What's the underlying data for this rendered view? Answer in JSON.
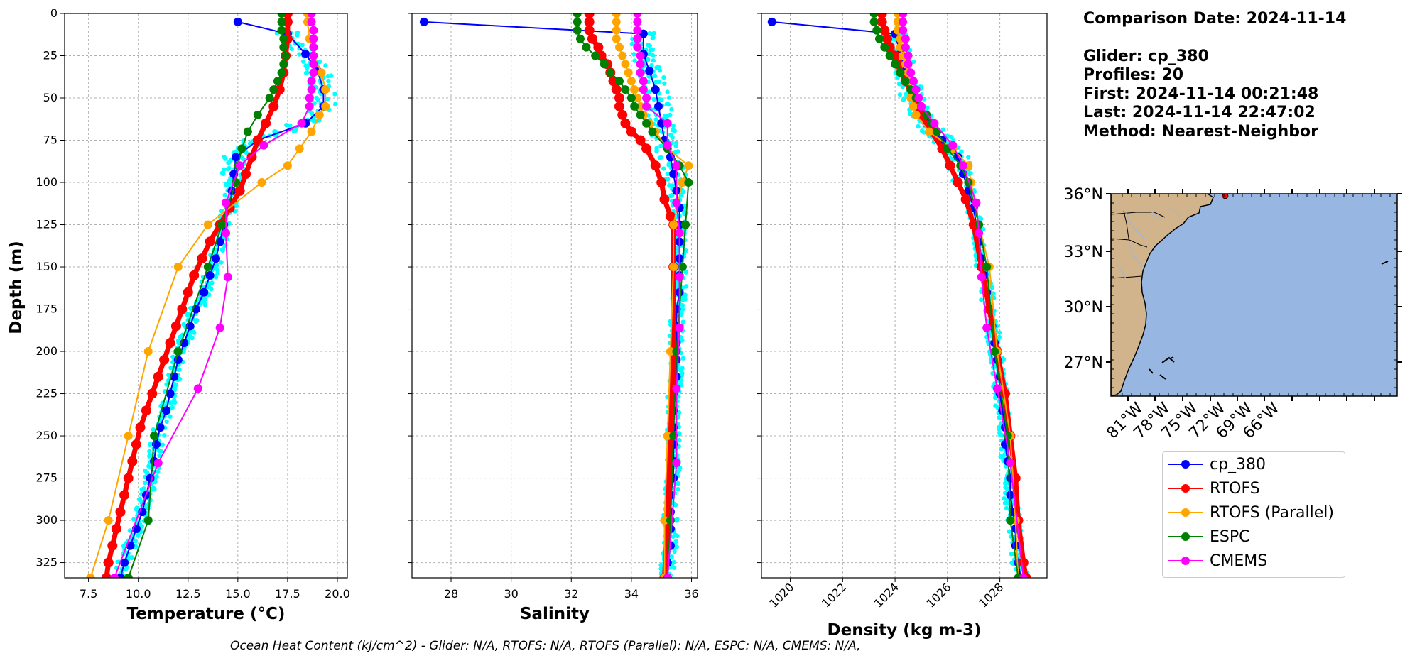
{
  "info": {
    "comparison_date": "Comparison Date: 2024-11-14",
    "glider": "Glider: cp_380",
    "profiles": "Profiles: 20",
    "first": "First: 2024-11-14 00:21:48",
    "last": "Last: 2024-11-14 22:47:02",
    "method": "Method: Nearest-Neighbor"
  },
  "footnote": "Ocean Heat Content (kJ/cm^2) - Glider: N/A,  RTOFS: N/A,  RTOFS (Parallel): N/A,  ESPC: N/A,  CMEMS: N/A,",
  "colors": {
    "cp_380": "#0000ff",
    "RTOFS": "#ff0000",
    "RTOFS (Parallel)": "#ffa500",
    "ESPC": "#008000",
    "CMEMS": "#ff00ff",
    "raw_profiles": "#00ffff",
    "ocean": "#97b6e1",
    "land": "#d2b48c"
  },
  "legend": [
    "cp_380",
    "RTOFS",
    "RTOFS (Parallel)",
    "ESPC",
    "CMEMS"
  ],
  "chart_data": [
    {
      "type": "line",
      "panel": "temperature",
      "xlabel": "Temperature (°C)",
      "ylabel": "Depth (m)",
      "xlim": [
        6.3,
        20.5
      ],
      "ylim": [
        334,
        0
      ],
      "xticks": [
        7.5,
        10.0,
        12.5,
        15.0,
        17.5,
        20.0
      ],
      "yticks": [
        0,
        25,
        50,
        75,
        100,
        125,
        150,
        175,
        200,
        225,
        250,
        275,
        300,
        325
      ],
      "grid": true,
      "series": [
        {
          "name": "cp_380",
          "depth": [
            5,
            12,
            24,
            34,
            45,
            55,
            65,
            75,
            85,
            95,
            105,
            115,
            125,
            135,
            145,
            155,
            165,
            175,
            185,
            195,
            205,
            215,
            225,
            235,
            245,
            255,
            265,
            275,
            285,
            295,
            305,
            315,
            325,
            334
          ],
          "values": [
            15.0,
            17.5,
            18.4,
            19.0,
            19.3,
            19.3,
            18.4,
            16.0,
            14.9,
            14.8,
            14.7,
            14.6,
            14.3,
            14.1,
            13.9,
            13.6,
            13.3,
            12.9,
            12.6,
            12.3,
            12.0,
            11.8,
            11.6,
            11.4,
            11.1,
            10.9,
            10.8,
            10.6,
            10.4,
            10.2,
            9.9,
            9.6,
            9.3,
            9.1
          ]
        },
        {
          "name": "RTOFS",
          "depth": [
            0,
            5,
            15,
            25,
            35,
            45,
            55,
            65,
            75,
            85,
            95,
            105,
            115,
            125,
            135,
            145,
            155,
            165,
            175,
            185,
            195,
            205,
            215,
            225,
            235,
            245,
            255,
            265,
            275,
            285,
            295,
            305,
            315,
            325,
            334
          ],
          "values": [
            17.5,
            17.5,
            17.5,
            17.4,
            17.3,
            17.1,
            16.8,
            16.4,
            16.0,
            15.7,
            15.4,
            15.1,
            14.6,
            14.1,
            13.6,
            13.2,
            12.8,
            12.5,
            12.2,
            11.9,
            11.6,
            11.3,
            11.0,
            10.7,
            10.4,
            10.1,
            9.9,
            9.7,
            9.5,
            9.3,
            9.1,
            8.9,
            8.7,
            8.5,
            8.4
          ]
        },
        {
          "name": "RTOFS (Parallel)",
          "depth": [
            0,
            5,
            15,
            25,
            35,
            45,
            55,
            60,
            70,
            80,
            90,
            100,
            125,
            150,
            200,
            250,
            300,
            334
          ],
          "values": [
            18.5,
            18.5,
            18.6,
            18.8,
            19.2,
            19.4,
            19.4,
            19.1,
            18.7,
            18.1,
            17.5,
            16.2,
            13.5,
            12.0,
            10.5,
            9.5,
            8.5,
            7.6
          ]
        },
        {
          "name": "ESPC",
          "depth": [
            0,
            5,
            10,
            15,
            20,
            25,
            30,
            35,
            40,
            45,
            50,
            60,
            70,
            80,
            90,
            100,
            125,
            150,
            200,
            250,
            300,
            334
          ],
          "values": [
            17.2,
            17.2,
            17.2,
            17.3,
            17.3,
            17.4,
            17.3,
            17.2,
            17.0,
            16.8,
            16.6,
            16.0,
            15.5,
            15.2,
            15.0,
            14.9,
            14.2,
            13.5,
            12.0,
            10.8,
            10.5,
            9.5
          ]
        },
        {
          "name": "CMEMS",
          "depth": [
            0,
            5,
            10,
            15,
            20,
            25,
            30,
            35,
            40,
            45,
            50,
            55,
            65,
            78,
            90,
            112,
            130,
            156,
            186,
            222,
            266,
            334
          ],
          "values": [
            18.7,
            18.7,
            18.8,
            18.8,
            18.8,
            18.8,
            18.8,
            18.8,
            18.7,
            18.7,
            18.6,
            18.6,
            18.2,
            16.3,
            15.1,
            14.4,
            14.4,
            14.5,
            14.1,
            13.0,
            11.0,
            8.8
          ]
        }
      ]
    },
    {
      "type": "line",
      "panel": "salinity",
      "xlabel": "Salinity",
      "xlim": [
        26.7,
        36.2
      ],
      "ylim": [
        334,
        0
      ],
      "xticks": [
        28,
        30,
        32,
        34,
        36
      ],
      "yticks": [
        0,
        25,
        50,
        75,
        100,
        125,
        150,
        175,
        200,
        225,
        250,
        275,
        300,
        325
      ],
      "grid": true,
      "series": [
        {
          "name": "cp_380",
          "depth": [
            5,
            12,
            24,
            34,
            45,
            55,
            65,
            75,
            85,
            95,
            105,
            115,
            125,
            135,
            145,
            155,
            165,
            175,
            185,
            195,
            205,
            215,
            225,
            235,
            245,
            255,
            265,
            275,
            285,
            295,
            305,
            315,
            325,
            334
          ],
          "values": [
            27.1,
            34.4,
            34.4,
            34.6,
            34.8,
            34.9,
            35.0,
            35.1,
            35.3,
            35.4,
            35.5,
            35.6,
            35.6,
            35.6,
            35.6,
            35.6,
            35.6,
            35.5,
            35.5,
            35.5,
            35.5,
            35.5,
            35.4,
            35.4,
            35.4,
            35.4,
            35.4,
            35.4,
            35.3,
            35.3,
            35.3,
            35.3,
            35.2,
            35.2
          ]
        },
        {
          "name": "RTOFS",
          "depth": [
            0,
            5,
            10,
            15,
            20,
            25,
            30,
            35,
            40,
            45,
            50,
            55,
            60,
            65,
            70,
            75,
            80,
            90,
            100,
            110,
            120,
            125,
            150,
            200,
            250,
            300,
            334
          ],
          "values": [
            32.6,
            32.6,
            32.6,
            32.7,
            32.9,
            33.0,
            33.2,
            33.3,
            33.4,
            33.5,
            33.6,
            33.6,
            33.7,
            33.8,
            34.0,
            34.3,
            34.5,
            34.8,
            35.0,
            35.1,
            35.3,
            35.4,
            35.4,
            35.4,
            35.3,
            35.2,
            35.1
          ]
        },
        {
          "name": "RTOFS (Parallel)",
          "depth": [
            0,
            5,
            10,
            15,
            20,
            25,
            30,
            35,
            40,
            45,
            50,
            55,
            60,
            65,
            70,
            80,
            90,
            100,
            125,
            150,
            200,
            250,
            300,
            334
          ],
          "values": [
            33.5,
            33.5,
            33.5,
            33.5,
            33.6,
            33.7,
            33.8,
            33.9,
            34.0,
            34.1,
            34.2,
            34.3,
            34.4,
            34.6,
            34.8,
            35.2,
            35.9,
            35.7,
            35.4,
            35.4,
            35.3,
            35.2,
            35.1,
            35.1
          ]
        },
        {
          "name": "ESPC",
          "depth": [
            0,
            5,
            10,
            15,
            20,
            25,
            30,
            35,
            40,
            45,
            50,
            55,
            60,
            65,
            70,
            80,
            90,
            100,
            125,
            150,
            200,
            250,
            300,
            334
          ],
          "values": [
            32.2,
            32.2,
            32.2,
            32.3,
            32.5,
            32.8,
            33.1,
            33.3,
            33.6,
            33.8,
            34.0,
            34.1,
            34.3,
            34.5,
            34.7,
            35.2,
            35.6,
            35.9,
            35.8,
            35.7,
            35.5,
            35.4,
            35.3,
            35.2
          ]
        },
        {
          "name": "CMEMS",
          "depth": [
            0,
            5,
            10,
            15,
            20,
            25,
            30,
            35,
            40,
            45,
            50,
            55,
            65,
            78,
            90,
            112,
            130,
            156,
            186,
            222,
            266,
            334
          ],
          "values": [
            34.2,
            34.2,
            34.2,
            34.2,
            34.2,
            34.3,
            34.3,
            34.3,
            34.4,
            34.4,
            34.5,
            34.5,
            35.2,
            35.2,
            35.5,
            35.5,
            35.6,
            35.6,
            35.6,
            35.5,
            35.5,
            35.2
          ]
        }
      ]
    },
    {
      "type": "line",
      "panel": "density",
      "xlabel": "Density (kg m-3)",
      "xlim": [
        1018.9,
        1029.8
      ],
      "ylim": [
        334,
        0
      ],
      "xticks": [
        1020,
        1022,
        1024,
        1026,
        1028
      ],
      "yticks": [
        0,
        25,
        50,
        75,
        100,
        125,
        150,
        175,
        200,
        225,
        250,
        275,
        300,
        325
      ],
      "grid": true,
      "series": [
        {
          "name": "cp_380",
          "depth": [
            5,
            12,
            24,
            34,
            45,
            55,
            65,
            75,
            85,
            95,
            105,
            115,
            125,
            135,
            145,
            155,
            165,
            175,
            185,
            195,
            205,
            215,
            225,
            235,
            245,
            255,
            265,
            275,
            285,
            295,
            305,
            315,
            325,
            334
          ],
          "values": [
            1019.3,
            1024.0,
            1024.2,
            1024.4,
            1024.6,
            1024.8,
            1025.2,
            1025.8,
            1026.4,
            1026.6,
            1026.8,
            1027.0,
            1027.1,
            1027.2,
            1027.3,
            1027.4,
            1027.5,
            1027.6,
            1027.7,
            1027.8,
            1027.9,
            1028.0,
            1028.0,
            1028.1,
            1028.2,
            1028.2,
            1028.3,
            1028.4,
            1028.4,
            1028.5,
            1028.6,
            1028.6,
            1028.7,
            1028.8
          ]
        },
        {
          "name": "RTOFS",
          "depth": [
            0,
            5,
            10,
            15,
            20,
            25,
            30,
            40,
            50,
            60,
            70,
            80,
            90,
            100,
            110,
            125,
            150,
            175,
            200,
            225,
            250,
            275,
            300,
            325,
            334
          ],
          "values": [
            1023.5,
            1023.5,
            1023.6,
            1023.7,
            1023.8,
            1024.0,
            1024.1,
            1024.4,
            1024.7,
            1025.0,
            1025.4,
            1025.8,
            1026.1,
            1026.4,
            1026.7,
            1027.0,
            1027.3,
            1027.6,
            1027.9,
            1028.2,
            1028.4,
            1028.6,
            1028.7,
            1028.9,
            1029.0
          ]
        },
        {
          "name": "RTOFS (Parallel)",
          "depth": [
            0,
            5,
            10,
            15,
            20,
            25,
            30,
            35,
            40,
            45,
            50,
            55,
            60,
            70,
            80,
            90,
            100,
            125,
            150,
            200,
            250,
            300,
            334
          ],
          "values": [
            1024.1,
            1024.1,
            1024.1,
            1024.2,
            1024.2,
            1024.3,
            1024.4,
            1024.5,
            1024.5,
            1024.6,
            1024.6,
            1024.7,
            1024.8,
            1025.3,
            1026.2,
            1026.8,
            1026.9,
            1027.2,
            1027.6,
            1027.9,
            1028.4,
            1028.6,
            1028.7
          ]
        },
        {
          "name": "ESPC",
          "depth": [
            0,
            5,
            10,
            15,
            20,
            25,
            30,
            35,
            40,
            45,
            50,
            55,
            60,
            65,
            70,
            80,
            90,
            100,
            125,
            150,
            200,
            250,
            300,
            334
          ],
          "values": [
            1023.2,
            1023.2,
            1023.3,
            1023.4,
            1023.6,
            1023.8,
            1024.0,
            1024.2,
            1024.4,
            1024.6,
            1024.8,
            1025.0,
            1025.2,
            1025.4,
            1025.6,
            1026.0,
            1026.5,
            1026.8,
            1027.2,
            1027.5,
            1027.8,
            1028.3,
            1028.4,
            1028.7
          ]
        },
        {
          "name": "CMEMS",
          "depth": [
            0,
            5,
            10,
            15,
            20,
            25,
            30,
            35,
            40,
            45,
            50,
            55,
            65,
            78,
            90,
            112,
            130,
            156,
            186,
            222,
            266,
            334
          ],
          "values": [
            1024.3,
            1024.3,
            1024.3,
            1024.4,
            1024.4,
            1024.5,
            1024.5,
            1024.6,
            1024.7,
            1024.8,
            1024.9,
            1025.0,
            1025.5,
            1026.2,
            1026.6,
            1027.1,
            1027.2,
            1027.3,
            1027.5,
            1027.9,
            1028.4,
            1028.9
          ]
        }
      ]
    }
  ],
  "map": {
    "lat_labels": [
      "36°N",
      "33°N",
      "30°N",
      "27°N"
    ],
    "lon_labels": [
      "81°W",
      "78°W",
      "75°W",
      "72°W",
      "69°W",
      "66°W"
    ],
    "extent": {
      "lon": [
        -82.3,
        -64.3
      ],
      "lat": [
        25.2,
        36.0
      ]
    },
    "glider_position": {
      "lon": -74.9,
      "lat": 36.0
    }
  }
}
